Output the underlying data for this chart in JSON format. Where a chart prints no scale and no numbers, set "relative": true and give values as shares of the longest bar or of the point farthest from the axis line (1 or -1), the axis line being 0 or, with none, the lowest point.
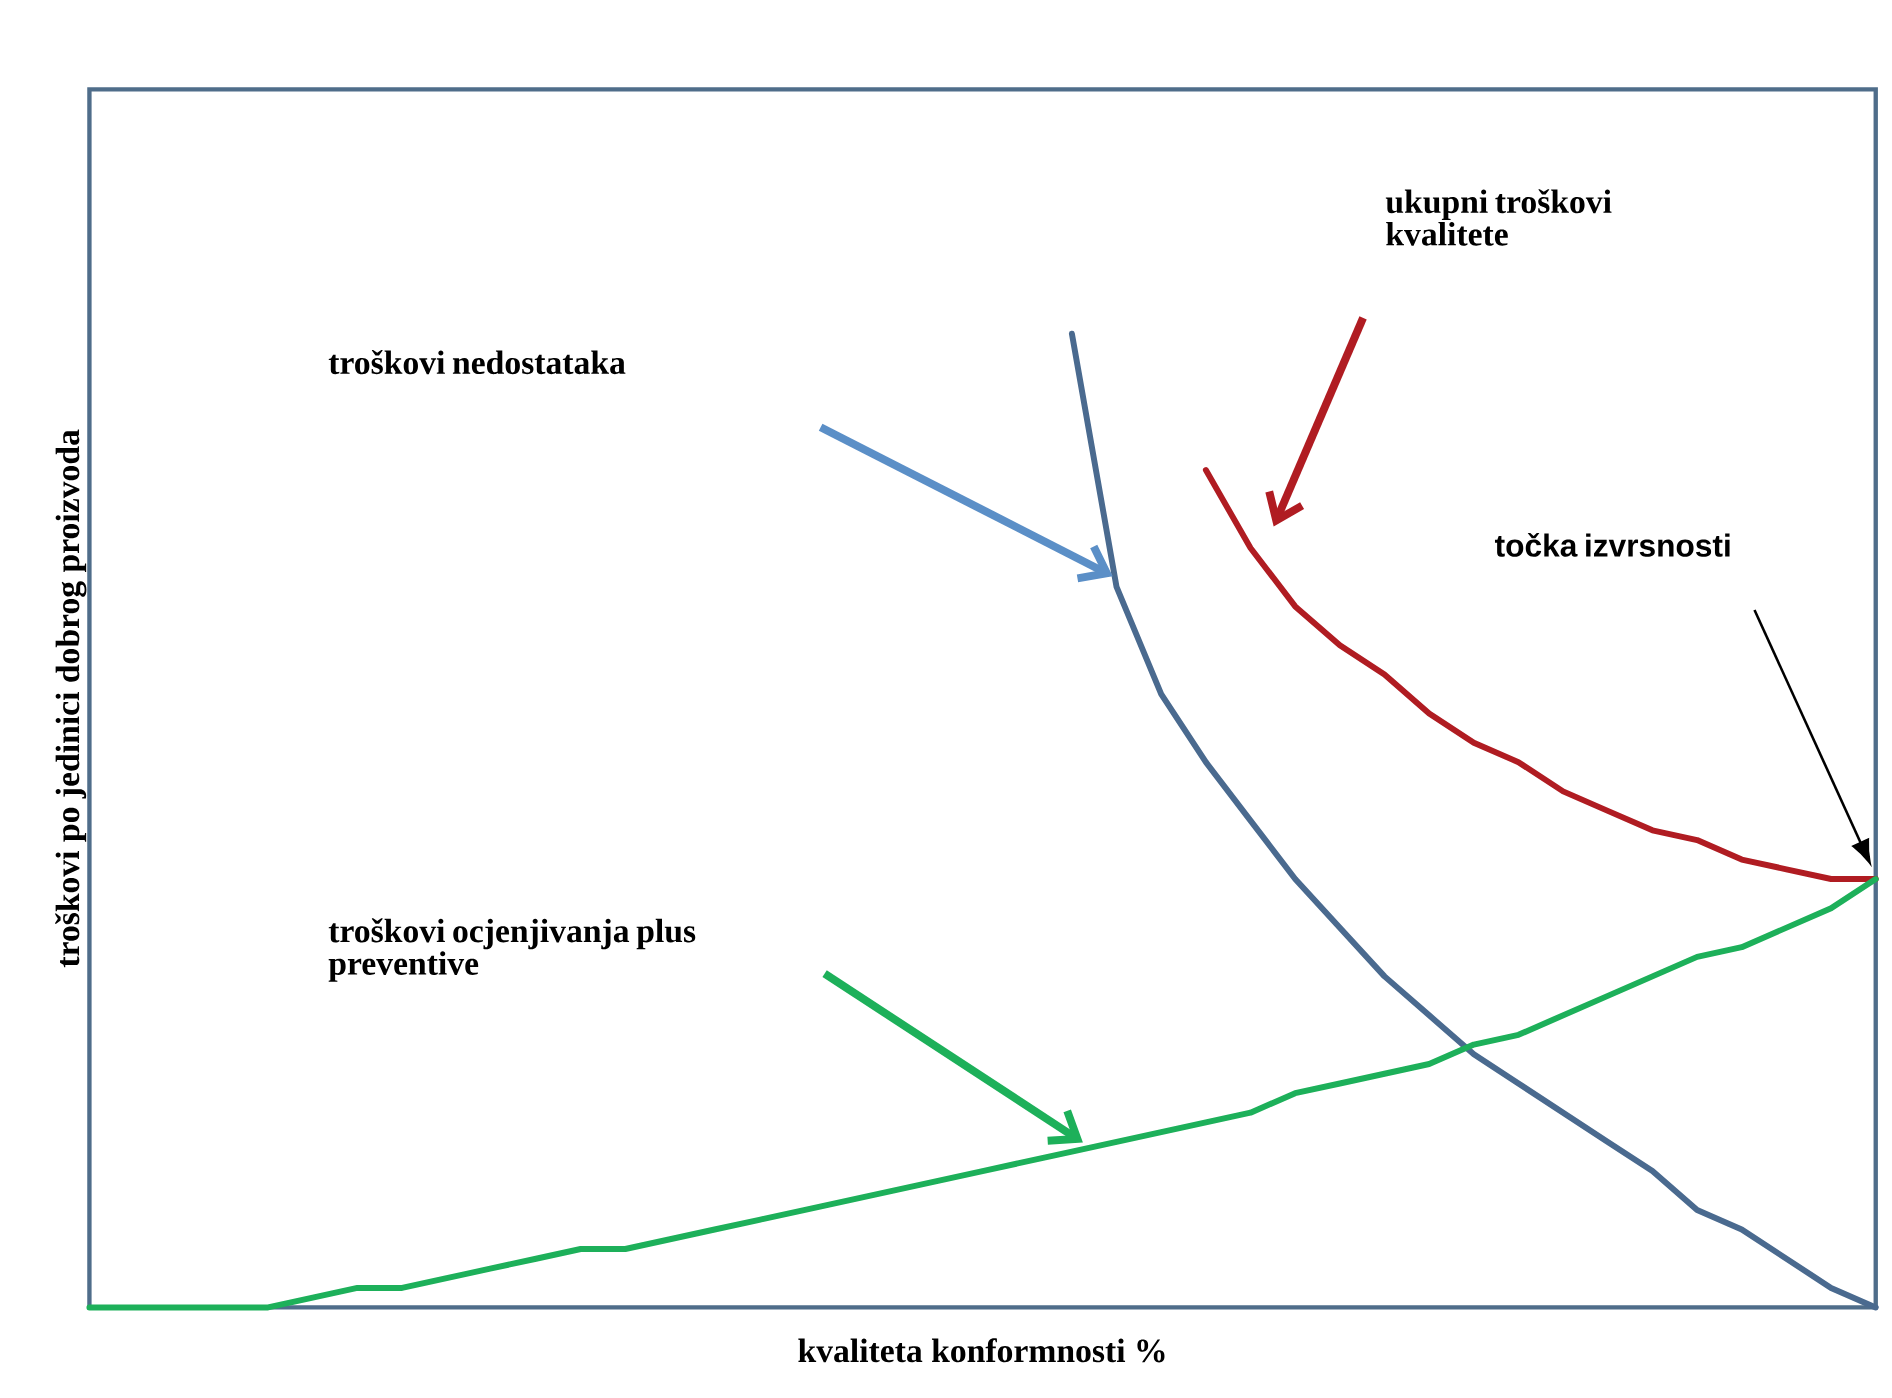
{
  "chart_data": {
    "type": "line",
    "relative": true,
    "marker": "none",
    "xlabel": "kvaliteta konformnosti %",
    "ylabel": "troškovi po jedinici dobrog proizvoda",
    "annotations": [
      "ukupni troškovi kvalitete",
      "troškovi nedostataka",
      "točka izvrsnosti",
      "troškovi ocjenjivanja plus preventive"
    ],
    "categories": [
      null,
      null,
      null,
      null,
      null,
      null,
      null,
      null,
      null,
      null,
      null,
      null,
      null,
      null,
      null,
      null,
      null,
      null,
      null,
      null,
      null,
      null,
      null,
      null,
      null,
      null,
      null,
      null,
      null,
      null,
      null,
      null,
      null,
      null,
      null,
      null,
      null,
      null,
      null,
      null,
      null
    ],
    "series": [
      {
        "color": "#4a6a8f",
        "values": [
          null,
          null,
          null,
          null,
          null,
          null,
          null,
          null,
          null,
          null,
          null,
          null,
          null,
          null,
          null,
          null,
          null,
          null,
          null,
          null,
          null,
          null,
          1.0,
          0.74,
          0.63,
          0.56,
          0.5,
          0.44,
          0.39,
          0.34,
          0.3,
          0.26,
          0.23,
          0.2,
          0.17,
          0.14,
          0.1,
          0.08,
          0.05,
          0.02,
          0
        ]
      },
      {
        "color": "#b01c22",
        "values": [
          null,
          null,
          null,
          null,
          null,
          null,
          null,
          null,
          null,
          null,
          null,
          null,
          null,
          null,
          null,
          null,
          null,
          null,
          null,
          null,
          null,
          null,
          null,
          null,
          null,
          0.86,
          0.78,
          0.72,
          0.68,
          0.65,
          0.61,
          0.58,
          0.56,
          0.53,
          0.51,
          0.49,
          0.48,
          0.46,
          0.45,
          0.44,
          0.44
        ]
      },
      {
        "color": "#1db05a",
        "values": [
          0,
          0,
          0,
          0,
          0,
          0.01,
          0.02,
          0.02,
          0.03,
          0.04,
          0.05,
          0.06,
          0.06,
          0.07,
          0.08,
          0.09,
          0.1,
          0.11,
          0.12,
          0.13,
          0.14,
          0.15,
          0.16,
          0.17,
          0.18,
          0.19,
          0.2,
          0.22,
          0.23,
          0.24,
          0.25,
          0.27,
          0.28,
          0.3,
          0.32,
          0.34,
          0.36,
          0.37,
          0.39,
          0.41,
          0.44
        ]
      }
    ]
  }
}
